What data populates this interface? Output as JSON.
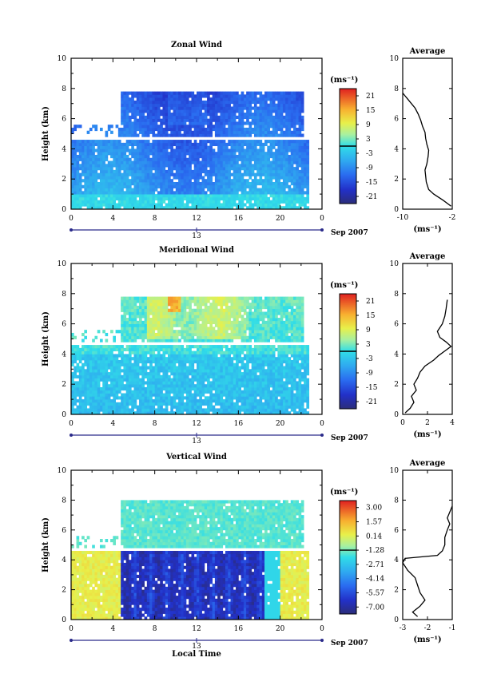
{
  "chart_data": [
    {
      "type": "heatmap",
      "title": "Zonal Wind",
      "ylabel": "Height (km)",
      "ylim": [
        0,
        10
      ],
      "yticks": [
        "0",
        "2",
        "4",
        "6",
        "8",
        "10"
      ],
      "xlim": [
        0,
        24
      ],
      "xticks": [
        "0",
        "4",
        "8",
        "12",
        "16",
        "20",
        "0"
      ],
      "day_label": "13",
      "date_label": "Sep 2007",
      "colorbar": {
        "unit_label": "(ms⁻¹)",
        "ticks": [
          "21",
          "15",
          "9",
          "3",
          "-3",
          "-9",
          "-15",
          "-21"
        ],
        "range": [
          -24,
          24
        ],
        "marker_value": 0
      },
      "average": {
        "title": "Average",
        "xlabel": "(ms⁻¹)",
        "xticks": [
          "-10",
          "-2"
        ],
        "xlim": [
          -10,
          -2
        ],
        "height": [
          0.2,
          0.6,
          1.0,
          1.3,
          1.8,
          2.2,
          2.6,
          3.0,
          3.5,
          3.9,
          4.3,
          4.7,
          5.1,
          5.5,
          5.9,
          6.3,
          6.7,
          7.1,
          7.4,
          7.7
        ],
        "value": [
          -2.2,
          -3.5,
          -5.0,
          -5.8,
          -6.2,
          -6.3,
          -6.4,
          -6.1,
          -5.9,
          -5.8,
          -6.1,
          -6.3,
          -6.4,
          -6.8,
          -7.1,
          -7.5,
          -8.0,
          -8.8,
          -9.4,
          -10.0
        ]
      }
    },
    {
      "type": "heatmap",
      "title": "Meridional Wind",
      "ylabel": "Height (km)",
      "ylim": [
        0,
        10
      ],
      "yticks": [
        "0",
        "2",
        "4",
        "6",
        "8",
        "10"
      ],
      "xlim": [
        0,
        24
      ],
      "xticks": [
        "0",
        "4",
        "8",
        "12",
        "16",
        "20",
        "0"
      ],
      "day_label": "13",
      "date_label": "Sep 2007",
      "colorbar": {
        "unit_label": "(ms⁻¹)",
        "ticks": [
          "21",
          "15",
          "9",
          "3",
          "-3",
          "-9",
          "-15",
          "-21"
        ],
        "range": [
          -24,
          24
        ],
        "marker_value": 0
      },
      "average": {
        "title": "Average",
        "xlabel": "(ms⁻¹)",
        "xticks": [
          "0",
          "2",
          "4"
        ],
        "xlim": [
          0,
          4
        ],
        "height": [
          0.1,
          0.4,
          0.8,
          1.2,
          1.6,
          2.0,
          2.4,
          2.8,
          3.2,
          3.6,
          3.9,
          4.2,
          4.5,
          4.8,
          5.1,
          5.5,
          6.0,
          6.5,
          7.0,
          7.6
        ],
        "value": [
          0.2,
          0.6,
          0.9,
          0.7,
          1.1,
          0.9,
          1.2,
          1.4,
          1.8,
          2.5,
          2.9,
          3.4,
          3.9,
          3.5,
          3.0,
          2.8,
          3.2,
          3.4,
          3.5,
          3.6
        ]
      }
    },
    {
      "type": "heatmap",
      "title": "Vertical Wind",
      "ylabel": "Height (km)",
      "xlabel": "Local Time",
      "ylim": [
        0,
        10
      ],
      "yticks": [
        "0",
        "2",
        "4",
        "6",
        "8",
        "10"
      ],
      "xlim": [
        0,
        24
      ],
      "xticks": [
        "0",
        "4",
        "8",
        "12",
        "16",
        "20",
        "0"
      ],
      "day_label": "13",
      "date_label": "Sep 2007",
      "colorbar": {
        "unit_label": "(ms⁻¹)",
        "ticks": [
          "3.00",
          "1.57",
          "0.14",
          "-1.28",
          "-2.71",
          "-4.14",
          "-5.57",
          "-7.00"
        ],
        "range": [
          -7.7,
          3.7
        ],
        "marker_value": -1.28
      },
      "average": {
        "title": "Average",
        "xlabel": "(ms⁻¹)",
        "xticks": [
          "-3",
          "-2",
          "-1"
        ],
        "xlim": [
          -3,
          -1
        ],
        "height": [
          0.2,
          0.5,
          0.9,
          1.3,
          1.8,
          2.3,
          2.8,
          3.3,
          3.8,
          4.1,
          4.3,
          4.6,
          5.0,
          5.5,
          6.0,
          6.4,
          6.8,
          7.2,
          7.6
        ],
        "value": [
          -2.4,
          -2.6,
          -2.3,
          -2.1,
          -2.3,
          -2.4,
          -2.5,
          -2.8,
          -3.0,
          -2.9,
          -1.6,
          -1.4,
          -1.3,
          -1.3,
          -1.2,
          -1.1,
          -1.2,
          -1.1,
          -1.0
        ]
      }
    }
  ]
}
